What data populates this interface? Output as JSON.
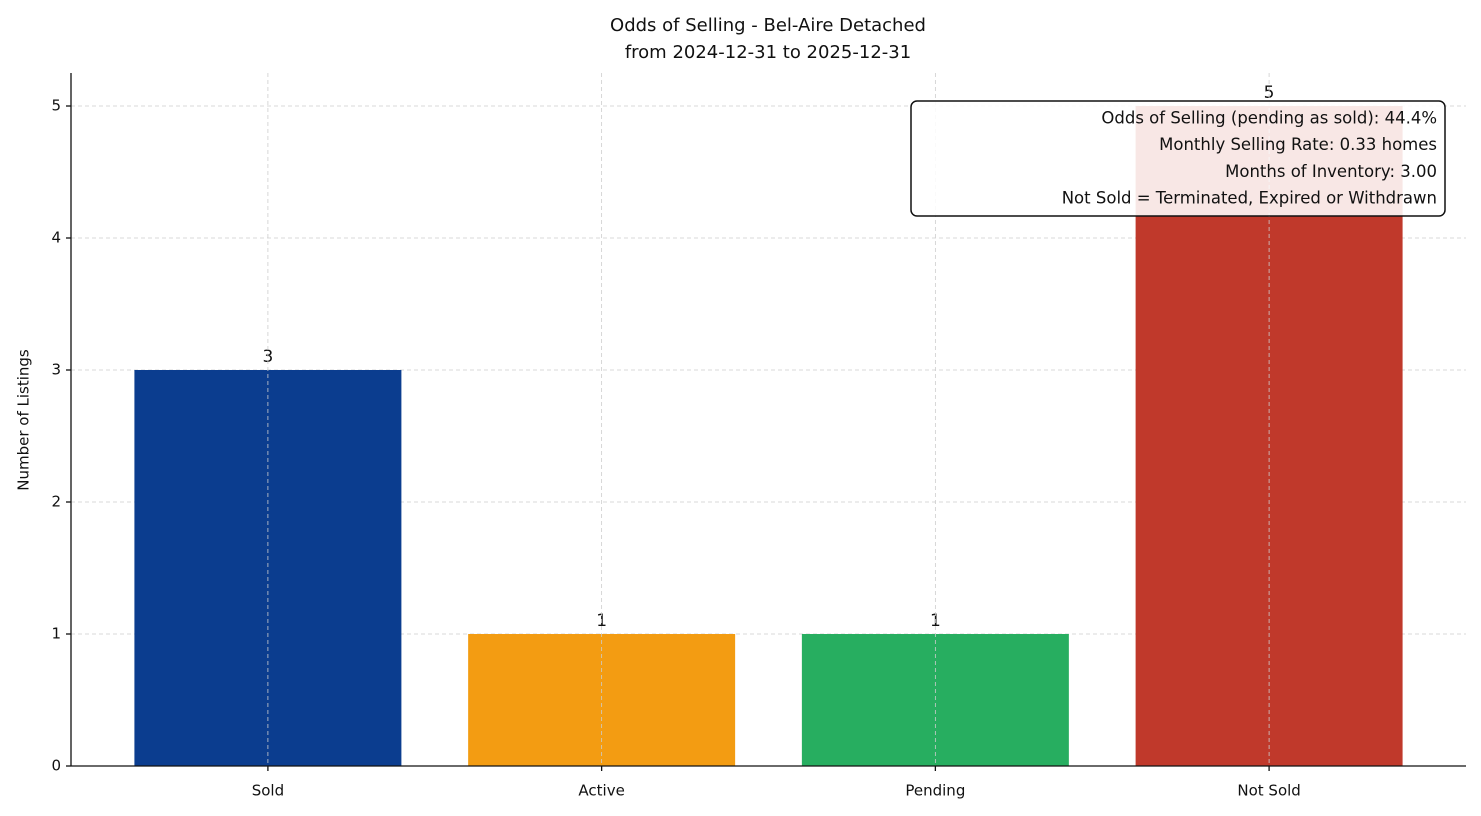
{
  "chart_data": {
    "type": "bar",
    "title": "Odds of Selling - Bel-Aire Detached",
    "subtitle": "from 2024-12-31 to 2025-12-31",
    "y_label": "Number of Listings",
    "categories": [
      "Sold",
      "Active",
      "Pending",
      "Not Sold"
    ],
    "values": [
      3,
      1,
      1,
      5
    ],
    "colors": [
      "#0b3d8f",
      "#f39c12",
      "#27ae60",
      "#c0392b"
    ],
    "ylim": [
      0,
      5.25
    ],
    "yticks": [
      0,
      1,
      2,
      3,
      4,
      5
    ],
    "grid": true,
    "annotation": [
      "Odds of Selling (pending as sold): 44.4%",
      "Monthly Selling Rate: 0.33 homes",
      "Months of Inventory: 3.00",
      "Not Sold = Terminated, Expired or Withdrawn"
    ]
  }
}
